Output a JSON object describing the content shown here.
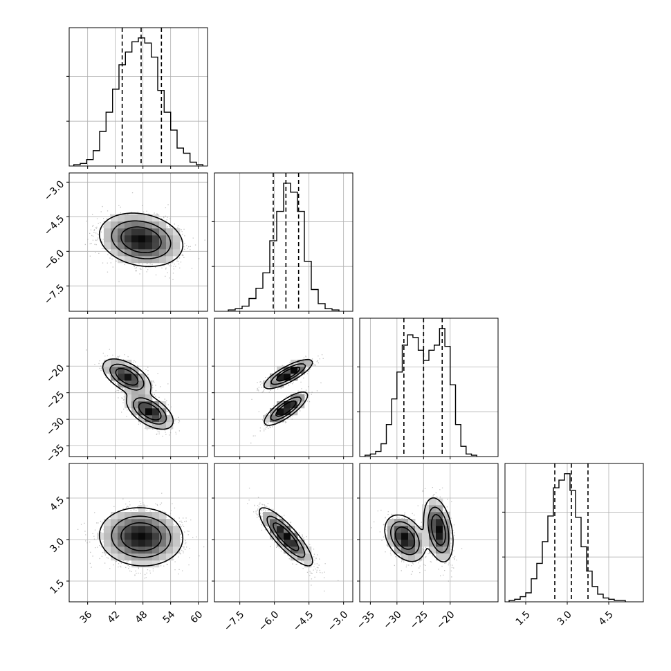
{
  "chart_data": {
    "type": "corner",
    "parameters": [
      {
        "range": [
          32,
          62
        ],
        "ticks": [
          36,
          42,
          48,
          54,
          60
        ],
        "tick_labels": [
          "36",
          "42",
          "48",
          "54",
          "60"
        ]
      },
      {
        "range": [
          -8.6,
          -2.6
        ],
        "ticks": [
          -7.5,
          -6.0,
          -4.5,
          -3.0
        ],
        "tick_labels": [
          "−7.5",
          "−6.0",
          "−4.5",
          "−3.0"
        ]
      },
      {
        "range": [
          -37,
          -11
        ],
        "ticks": [
          -35,
          -30,
          -25,
          -20
        ],
        "tick_labels": [
          "−35",
          "−30",
          "−25",
          "−20"
        ]
      },
      {
        "range": [
          0.75,
          5.75
        ],
        "ticks": [
          1.5,
          3.0,
          4.5
        ],
        "tick_labels": [
          "1.5",
          "3.0",
          "4.5"
        ]
      }
    ],
    "quantiles": [
      [
        43.5,
        47.6,
        52.0
      ],
      [
        -6.05,
        -5.5,
        -4.95
      ],
      [
        -28.7,
        -25.0,
        -21.5
      ],
      [
        2.55,
        3.15,
        3.75
      ]
    ],
    "marginals": [
      {
        "bin_edges": [
          33,
          34.4,
          35.8,
          37.2,
          38.6,
          40,
          41.4,
          42.8,
          44.2,
          45.6,
          47,
          48.4,
          49.8,
          51.2,
          52.6,
          54,
          55.4,
          56.8,
          58.2,
          59.6,
          61
        ],
        "counts": [
          0.01,
          0.02,
          0.05,
          0.12,
          0.27,
          0.42,
          0.6,
          0.79,
          0.89,
          0.97,
          1.0,
          0.96,
          0.85,
          0.59,
          0.42,
          0.28,
          0.14,
          0.1,
          0.03,
          0.01
        ]
      },
      {
        "bin_edges": [
          -8.0,
          -7.7,
          -7.4,
          -7.1,
          -6.8,
          -6.5,
          -6.2,
          -5.9,
          -5.6,
          -5.3,
          -5.0,
          -4.7,
          -4.4,
          -4.1,
          -3.8,
          -3.5,
          -3.2
        ],
        "counts": [
          0.01,
          0.02,
          0.04,
          0.1,
          0.18,
          0.3,
          0.55,
          0.78,
          1.0,
          0.93,
          0.78,
          0.39,
          0.17,
          0.06,
          0.02,
          0.01
        ]
      },
      {
        "bin_edges": [
          -36,
          -35,
          -34,
          -33,
          -32,
          -31,
          -30,
          -29,
          -28,
          -27,
          -26,
          -25,
          -24,
          -23,
          -22,
          -21,
          -20,
          -19,
          -18,
          -17,
          -16,
          -15
        ],
        "counts": [
          0.01,
          0.02,
          0.04,
          0.1,
          0.25,
          0.45,
          0.66,
          0.87,
          0.95,
          0.93,
          0.83,
          0.75,
          0.83,
          0.87,
          1.0,
          0.86,
          0.56,
          0.25,
          0.08,
          0.02,
          0.01
        ]
      },
      {
        "bin_edges": [
          0.9,
          1.1,
          1.3,
          1.5,
          1.7,
          1.9,
          2.1,
          2.3,
          2.5,
          2.7,
          2.9,
          3.1,
          3.3,
          3.5,
          3.7,
          3.9,
          4.1,
          4.3,
          4.5,
          4.7,
          4.9,
          5.1
        ],
        "counts": [
          0.01,
          0.02,
          0.04,
          0.07,
          0.18,
          0.3,
          0.47,
          0.67,
          0.89,
          0.95,
          1.0,
          0.87,
          0.66,
          0.43,
          0.24,
          0.12,
          0.06,
          0.03,
          0.02,
          0.01,
          0.01
        ]
      }
    ],
    "joint": [
      {
        "x": 1,
        "y": 2,
        "components": [
          {
            "w": 1.0,
            "mu": [
              47.6,
              -5.5
            ],
            "sd": [
              4.3,
              0.55
            ],
            "rho": -0.2
          }
        ]
      },
      {
        "x": 1,
        "y": 3,
        "components": [
          {
            "w": 0.5,
            "mu": [
              44.5,
              -22.0
            ],
            "sd": [
              2.5,
              1.6
            ],
            "rho": -0.55
          },
          {
            "w": 0.5,
            "mu": [
              49.5,
              -28.5
            ],
            "sd": [
              2.4,
              1.6
            ],
            "rho": -0.55
          }
        ]
      },
      {
        "x": 2,
        "y": 3,
        "components": [
          {
            "w": 0.5,
            "mu": [
              -5.4,
              -21.5
            ],
            "sd": [
              0.5,
              1.3
            ],
            "rho": 0.8
          },
          {
            "w": 0.5,
            "mu": [
              -5.5,
              -28.0
            ],
            "sd": [
              0.45,
              1.5
            ],
            "rho": 0.8
          }
        ]
      },
      {
        "x": 1,
        "y": 4,
        "components": [
          {
            "w": 1.0,
            "mu": [
              47.6,
              3.1
            ],
            "sd": [
              4.3,
              0.5
            ],
            "rho": -0.05
          }
        ]
      },
      {
        "x": 2,
        "y": 4,
        "components": [
          {
            "w": 1.0,
            "mu": [
              -5.5,
              3.1
            ],
            "sd": [
              0.55,
              0.5
            ],
            "rho": -0.85
          }
        ]
      },
      {
        "x": 3,
        "y": 4,
        "components": [
          {
            "w": 0.5,
            "mu": [
              -28.5,
              3.05
            ],
            "sd": [
              1.8,
              0.4
            ],
            "rho": -0.35
          },
          {
            "w": 0.5,
            "mu": [
              -22.2,
              3.35
            ],
            "sd": [
              1.3,
              0.55
            ],
            "rho": -0.35
          }
        ]
      }
    ]
  }
}
